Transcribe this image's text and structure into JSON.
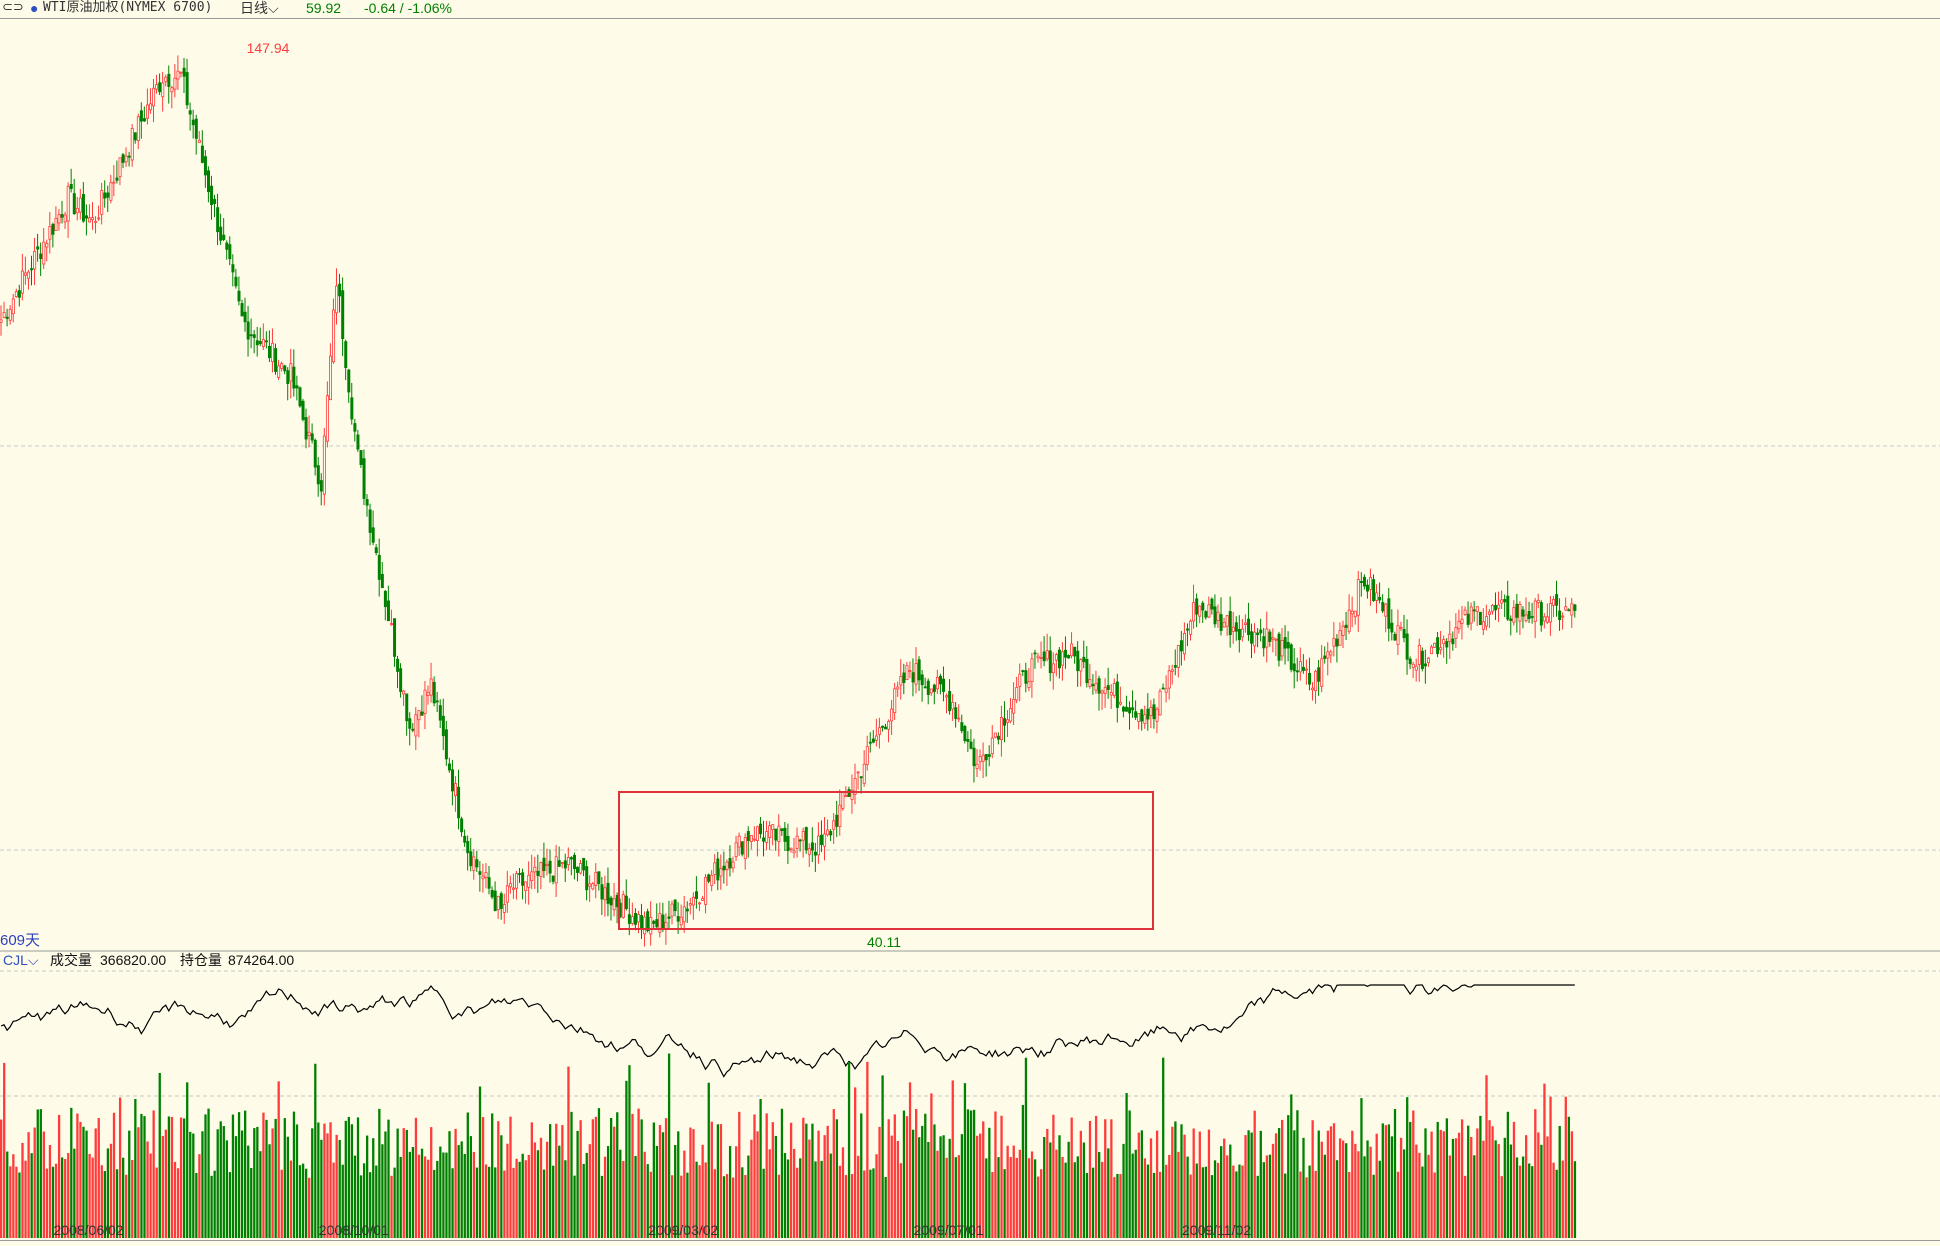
{
  "header": {
    "link_icon": "link-icon",
    "instrument": "WTI原油加权(NYMEX 6700)",
    "period_label": "日线",
    "last_price": "59.92",
    "change": "-0.64 / -1.06%",
    "colors": {
      "up": "#ff3b3b",
      "down": "#008000",
      "instrument_dot": "#2d4fbf",
      "text": "#333333"
    }
  },
  "annotations": {
    "high_label": "147.94",
    "low_label": "40.11",
    "days_label": "609天",
    "highlight_box_color": "#e0303a"
  },
  "indicator": {
    "name": "CJL",
    "volume_label": "成交量",
    "volume_value": "366820.00",
    "oi_label": "持仓量",
    "oi_value": "874264.00"
  },
  "chart_data": {
    "type": "candlestick",
    "title": "WTI原油加权(NYMEX 6700)",
    "x_tick_labels": [
      "2008/06/02",
      "2008/10/01",
      "2009/03/02",
      "2009/07/01",
      "2009/11/02"
    ],
    "price_high": 147.94,
    "price_low": 40.11,
    "anchors": [
      {
        "date": "2008/04/21",
        "close": 115
      },
      {
        "date": "2008/05/21",
        "close": 130
      },
      {
        "date": "2008/06/02",
        "close": 127
      },
      {
        "date": "2008/07/03",
        "close": 145
      },
      {
        "date": "2008/07/11",
        "close": 145
      },
      {
        "date": "2008/08/08",
        "close": 115
      },
      {
        "date": "2008/09/01",
        "close": 108
      },
      {
        "date": "2008/09/15",
        "close": 95
      },
      {
        "date": "2008/09/22",
        "close": 120
      },
      {
        "date": "2008/10/01",
        "close": 98
      },
      {
        "date": "2008/10/24",
        "close": 65
      },
      {
        "date": "2008/11/04",
        "close": 70
      },
      {
        "date": "2008/11/20",
        "close": 50
      },
      {
        "date": "2008/12/05",
        "close": 42
      },
      {
        "date": "2008/12/10",
        "close": 45
      },
      {
        "date": "2009/01/06",
        "close": 48
      },
      {
        "date": "2009/02/12",
        "close": 40.11
      },
      {
        "date": "2009/03/02",
        "close": 43
      },
      {
        "date": "2009/03/31",
        "close": 52
      },
      {
        "date": "2009/05/01",
        "close": 50
      },
      {
        "date": "2009/06/11",
        "close": 72
      },
      {
        "date": "2009/07/01",
        "close": 68
      },
      {
        "date": "2009/07/13",
        "close": 60
      },
      {
        "date": "2009/08/05",
        "close": 72
      },
      {
        "date": "2009/08/24",
        "close": 74
      },
      {
        "date": "2009/09/11",
        "close": 69
      },
      {
        "date": "2009/10/01",
        "close": 66
      },
      {
        "date": "2009/10/21",
        "close": 80
      },
      {
        "date": "2009/11/02",
        "close": 78
      },
      {
        "date": "2009/11/23",
        "close": 76
      },
      {
        "date": "2009/12/14",
        "close": 70
      },
      {
        "date": "2010/01/06",
        "close": 83
      },
      {
        "date": "2010/01/29",
        "close": 73
      },
      {
        "date": "2010/02/26",
        "close": 79
      }
    ]
  }
}
